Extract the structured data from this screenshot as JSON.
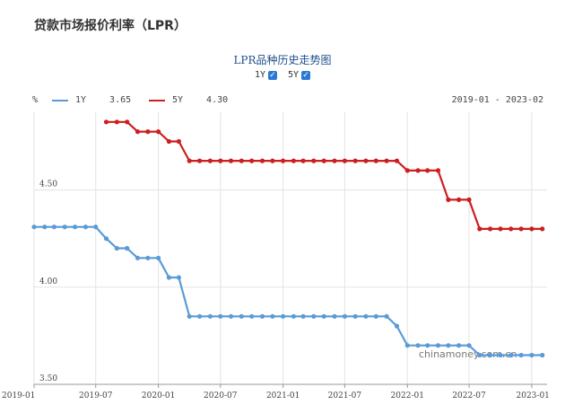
{
  "page": {
    "title": "贷款市场报价利率（LPR）"
  },
  "chart_title": "LPR品种历史走势图",
  "toggles": [
    {
      "label": "1Y",
      "checked": true
    },
    {
      "label": "5Y",
      "checked": true
    }
  ],
  "legend": {
    "unit": "%",
    "range": "2019-01 - 2023-02",
    "items": [
      {
        "name": "1Y",
        "value": "3.65",
        "color": "#5b9bd5"
      },
      {
        "name": "5Y",
        "value": "4.30",
        "color": "#cc1f1f"
      }
    ]
  },
  "watermark": "chinamoney.com.cn",
  "chart_data": {
    "type": "line",
    "title": "LPR品种历史走势图",
    "xlabel": "",
    "ylabel": "%",
    "ylim": [
      3.5,
      4.9
    ],
    "y_ticks": [
      "3.50",
      "4.00",
      "4.50"
    ],
    "x_ticks": [
      "2019-01",
      "2019-07",
      "2020-01",
      "2020-07",
      "2021-01",
      "2021-07",
      "2022-01",
      "2022-07",
      "2023-01"
    ],
    "grid": true,
    "series": [
      {
        "name": "1Y",
        "color": "#5b9bd5",
        "x": [
          "2019-01",
          "2019-02",
          "2019-03",
          "2019-04",
          "2019-05",
          "2019-06",
          "2019-07",
          "2019-08",
          "2019-09",
          "2019-10",
          "2019-11",
          "2019-12",
          "2020-01",
          "2020-02",
          "2020-03",
          "2020-04",
          "2020-05",
          "2020-06",
          "2020-07",
          "2020-08",
          "2020-09",
          "2020-10",
          "2020-11",
          "2020-12",
          "2021-01",
          "2021-02",
          "2021-03",
          "2021-04",
          "2021-05",
          "2021-06",
          "2021-07",
          "2021-08",
          "2021-09",
          "2021-10",
          "2021-11",
          "2021-12",
          "2022-01",
          "2022-02",
          "2022-03",
          "2022-04",
          "2022-05",
          "2022-06",
          "2022-07",
          "2022-08",
          "2022-09",
          "2022-10",
          "2022-11",
          "2022-12",
          "2023-01",
          "2023-02"
        ],
        "values": [
          4.31,
          4.31,
          4.31,
          4.31,
          4.31,
          4.31,
          4.31,
          4.25,
          4.2,
          4.2,
          4.15,
          4.15,
          4.15,
          4.05,
          4.05,
          3.85,
          3.85,
          3.85,
          3.85,
          3.85,
          3.85,
          3.85,
          3.85,
          3.85,
          3.85,
          3.85,
          3.85,
          3.85,
          3.85,
          3.85,
          3.85,
          3.85,
          3.85,
          3.85,
          3.85,
          3.8,
          3.7,
          3.7,
          3.7,
          3.7,
          3.7,
          3.7,
          3.7,
          3.65,
          3.65,
          3.65,
          3.65,
          3.65,
          3.65,
          3.65
        ]
      },
      {
        "name": "5Y",
        "color": "#cc1f1f",
        "x": [
          "2019-08",
          "2019-09",
          "2019-10",
          "2019-11",
          "2019-12",
          "2020-01",
          "2020-02",
          "2020-03",
          "2020-04",
          "2020-05",
          "2020-06",
          "2020-07",
          "2020-08",
          "2020-09",
          "2020-10",
          "2020-11",
          "2020-12",
          "2021-01",
          "2021-02",
          "2021-03",
          "2021-04",
          "2021-05",
          "2021-06",
          "2021-07",
          "2021-08",
          "2021-09",
          "2021-10",
          "2021-11",
          "2021-12",
          "2022-01",
          "2022-02",
          "2022-03",
          "2022-04",
          "2022-05",
          "2022-06",
          "2022-07",
          "2022-08",
          "2022-09",
          "2022-10",
          "2022-11",
          "2022-12",
          "2023-01",
          "2023-02"
        ],
        "values": [
          4.85,
          4.85,
          4.85,
          4.8,
          4.8,
          4.8,
          4.75,
          4.75,
          4.65,
          4.65,
          4.65,
          4.65,
          4.65,
          4.65,
          4.65,
          4.65,
          4.65,
          4.65,
          4.65,
          4.65,
          4.65,
          4.65,
          4.65,
          4.65,
          4.65,
          4.65,
          4.65,
          4.65,
          4.65,
          4.6,
          4.6,
          4.6,
          4.6,
          4.45,
          4.45,
          4.45,
          4.3,
          4.3,
          4.3,
          4.3,
          4.3,
          4.3,
          4.3
        ]
      }
    ]
  }
}
